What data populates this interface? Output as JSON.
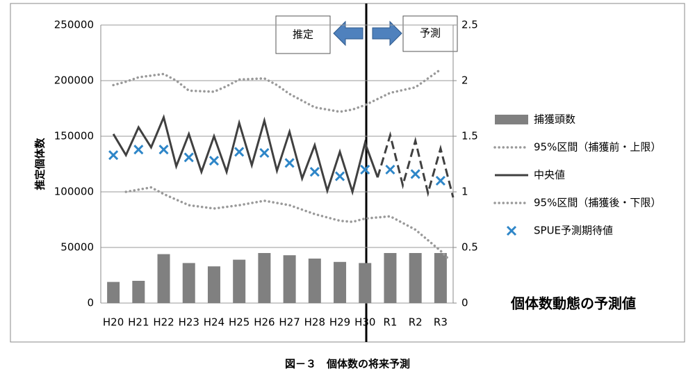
{
  "chart_data": {
    "type": "combo",
    "title": "個体数動態の予測値",
    "caption": "図－３　個体数の将来予測",
    "y_label": "推定個体数",
    "annotations": [
      "推定",
      "予測"
    ],
    "categories": [
      "H20",
      "H21",
      "H22",
      "H23",
      "H24",
      "H25",
      "H26",
      "H27",
      "H28",
      "H29",
      "H30",
      "R1",
      "R2",
      "R3"
    ],
    "ylim": [
      0,
      250000
    ],
    "yticks": [
      0,
      50000,
      100000,
      150000,
      200000,
      250000
    ],
    "y2lim": [
      0,
      2.5
    ],
    "y2ticks": [
      0,
      0.5,
      1,
      1.5,
      2,
      2.5
    ],
    "grid": true,
    "legend": "right",
    "series": [
      {
        "name": "捕獲頭数",
        "kind": "bar",
        "color": "#808080",
        "values": [
          19000,
          20000,
          44000,
          36000,
          33000,
          39000,
          45000,
          43000,
          40000,
          37000,
          36000,
          45000,
          45000,
          45000
        ]
      },
      {
        "name": "95%区間（捕獲前・上限）",
        "kind": "dotted",
        "color": "#999999",
        "x": [
          0,
          0.5,
          1,
          2,
          2.5,
          3,
          4,
          4.5,
          5,
          6,
          6.5,
          7,
          8,
          9,
          9.5,
          10,
          11,
          12,
          13
        ],
        "values": [
          196000,
          199000,
          203000,
          206000,
          200000,
          191000,
          190000,
          195000,
          201000,
          202000,
          196000,
          188000,
          176000,
          172000,
          174000,
          178000,
          189000,
          194000,
          210000
        ]
      },
      {
        "name": "中央値",
        "kind": "line",
        "color": "#404040",
        "x": [
          0,
          0.5,
          1,
          1.5,
          2,
          2.5,
          3,
          3.5,
          4,
          4.5,
          5,
          5.5,
          6,
          6.5,
          7,
          7.5,
          8,
          8.5,
          9,
          9.5,
          10,
          10.5
        ],
        "values": [
          152000,
          133000,
          158000,
          140000,
          167000,
          123000,
          152000,
          118000,
          150000,
          118000,
          162000,
          124000,
          164000,
          119000,
          154000,
          112000,
          142000,
          101000,
          136000,
          100000,
          144000,
          113000
        ]
      },
      {
        "name": "95%区間（捕獲後・下限）",
        "kind": "dotted",
        "color": "#999999",
        "x": [
          0.5,
          1,
          1.5,
          2,
          3,
          4,
          5,
          6,
          7,
          8,
          9,
          9.5,
          10,
          11,
          12,
          13,
          13.3
        ],
        "values": [
          100000,
          102000,
          104000,
          98000,
          88000,
          85000,
          88000,
          92000,
          88000,
          80000,
          74000,
          73000,
          76000,
          78000,
          66000,
          47000,
          40000
        ]
      },
      {
        "name": "SPUE予測期待値",
        "kind": "marker",
        "color": "#2e86c8",
        "axis": "y2",
        "values": [
          1.33,
          1.38,
          1.38,
          1.31,
          1.28,
          1.36,
          1.35,
          1.26,
          1.18,
          1.14,
          1.2,
          1.2,
          1.16,
          1.1
        ]
      },
      {
        "kind": "dashed",
        "color": "#404040",
        "x": [
          10.5,
          11,
          11.5,
          12,
          12.5,
          13,
          13.5
        ],
        "values": [
          113000,
          151000,
          106000,
          146000,
          99000,
          139000,
          95000
        ]
      }
    ]
  }
}
